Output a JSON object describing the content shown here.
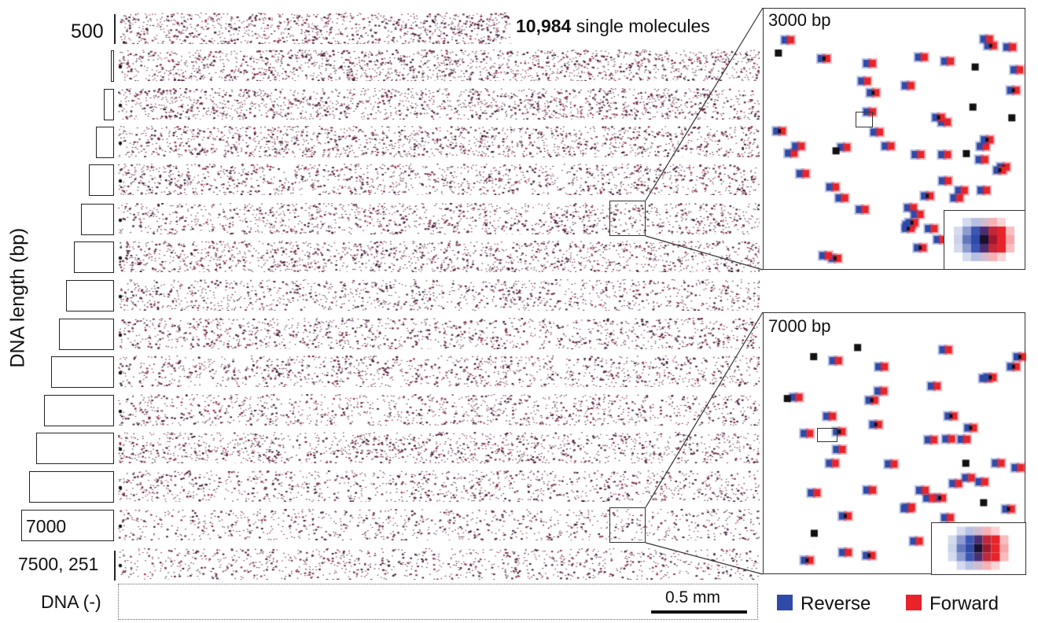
{
  "figure": {
    "y_axis_label": "DNA length (bp)",
    "top_lane_label": "500",
    "row_label_7000": "7000",
    "row_label_bottom": "7500, 251",
    "negative_control_label": "DNA (-)",
    "molecule_count": "10,984",
    "molecule_count_suffix": "single molecules",
    "scale_bar_label": "0.5 mm"
  },
  "lanes": [
    {
      "id": 1,
      "density": 1.0
    },
    {
      "id": 2,
      "density": 0.95
    },
    {
      "id": 3,
      "density": 0.9
    },
    {
      "id": 4,
      "density": 0.85
    },
    {
      "id": 5,
      "density": 0.8
    },
    {
      "id": 6,
      "density": 0.75
    },
    {
      "id": 7,
      "density": 0.85
    },
    {
      "id": 8,
      "density": 0.7
    },
    {
      "id": 9,
      "density": 0.72
    },
    {
      "id": 10,
      "density": 0.7
    },
    {
      "id": 11,
      "density": 0.68
    },
    {
      "id": 12,
      "density": 0.78
    },
    {
      "id": 13,
      "density": 0.65
    },
    {
      "id": 14,
      "density": 0.55
    },
    {
      "id": 15,
      "density": 0.6
    }
  ],
  "zoom_panels": [
    {
      "id": "top",
      "title": "3000 bp"
    },
    {
      "id": "bottom",
      "title": "7000 bp"
    }
  ],
  "legend": {
    "reverse_label": "Reverse",
    "forward_label": "Forward",
    "reverse_color": "#2f4aa8",
    "forward_color": "#e8232a"
  },
  "colors": {
    "dot": "#3a1830",
    "reverse": "#2f4aa8",
    "forward": "#e8232a",
    "overlap": "#111111"
  }
}
